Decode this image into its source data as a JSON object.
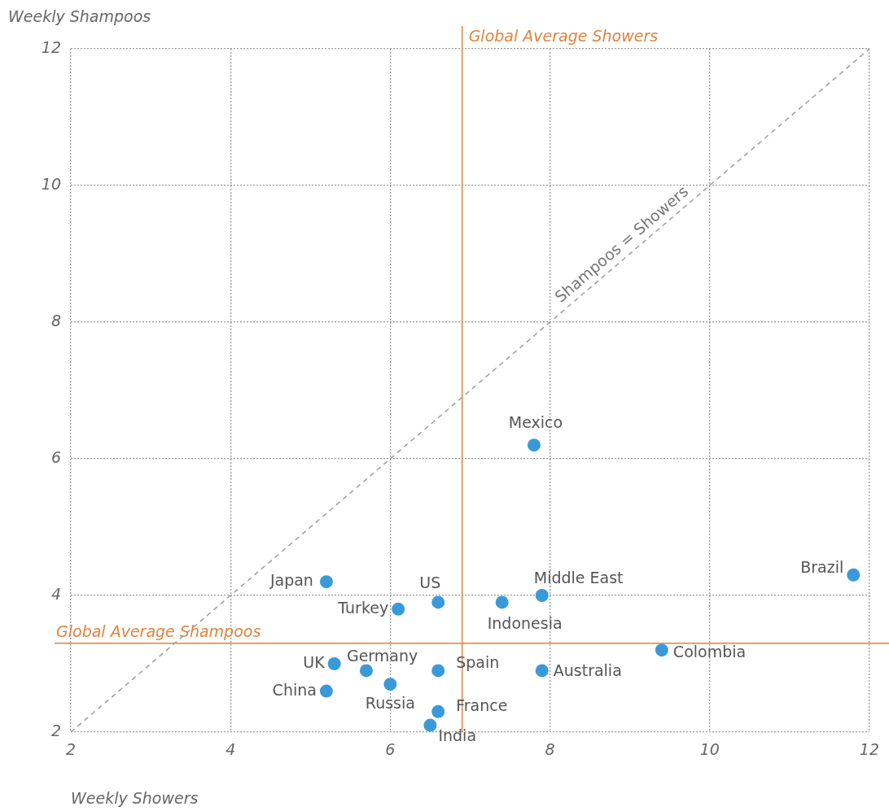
{
  "chart_data": {
    "type": "scatter",
    "xlabel": "Weekly Showers",
    "ylabel": "Weekly Shampoos",
    "xlim": [
      2,
      12
    ],
    "ylim": [
      2,
      12
    ],
    "xticks": [
      2,
      4,
      6,
      8,
      10,
      12
    ],
    "yticks": [
      2,
      4,
      6,
      8,
      10,
      12
    ],
    "grid": true,
    "marker": "circle",
    "series": [
      {
        "type": "scatter",
        "color": "#3a9ad9",
        "x": [
          7.8,
          5.2,
          6.6,
          6.1,
          7.4,
          7.9,
          11.8,
          9.4,
          7.9,
          5.3,
          5.7,
          6.6,
          6.0,
          5.2,
          6.6,
          6.5
        ],
        "values": [
          6.2,
          4.2,
          3.9,
          3.8,
          3.9,
          4.0,
          4.3,
          3.2,
          2.9,
          3.0,
          2.9,
          2.9,
          2.7,
          2.6,
          2.3,
          2.1
        ]
      },
      {
        "type": "line",
        "color": "#9e9e9e",
        "x": [
          2,
          12
        ],
        "values": [
          2,
          12
        ],
        "line_style": "dashed",
        "marker": "none"
      }
    ],
    "ref_lines": [
      {
        "axis": "x",
        "value": 6.9,
        "label": "Global Average Showers",
        "color": "#e0843e"
      },
      {
        "axis": "y",
        "value": 3.3,
        "label": "Global Average Shampoos",
        "color": "#e0843e"
      }
    ],
    "annotations": [
      {
        "text": "Mexico",
        "x": 7.8,
        "y": 6.2
      },
      {
        "text": "Japan",
        "x": 5.2,
        "y": 4.2
      },
      {
        "text": "US",
        "x": 6.6,
        "y": 3.9
      },
      {
        "text": "Turkey",
        "x": 6.1,
        "y": 3.8
      },
      {
        "text": "Indonesia",
        "x": 7.4,
        "y": 3.9
      },
      {
        "text": "Middle East",
        "x": 7.9,
        "y": 4.0
      },
      {
        "text": "Brazil",
        "x": 11.8,
        "y": 4.3
      },
      {
        "text": "Colombia",
        "x": 9.4,
        "y": 3.2
      },
      {
        "text": "Australia",
        "x": 7.9,
        "y": 2.9
      },
      {
        "text": "UK",
        "x": 5.3,
        "y": 3.0
      },
      {
        "text": "Germany",
        "x": 5.7,
        "y": 2.9
      },
      {
        "text": "Spain",
        "x": 6.6,
        "y": 2.9
      },
      {
        "text": "Russia",
        "x": 6.0,
        "y": 2.7
      },
      {
        "text": "China",
        "x": 5.2,
        "y": 2.6
      },
      {
        "text": "France",
        "x": 6.6,
        "y": 2.3
      },
      {
        "text": "India",
        "x": 6.5,
        "y": 2.1
      },
      {
        "text": "Shampoos = Showers",
        "x": 9,
        "y": 9
      }
    ]
  }
}
